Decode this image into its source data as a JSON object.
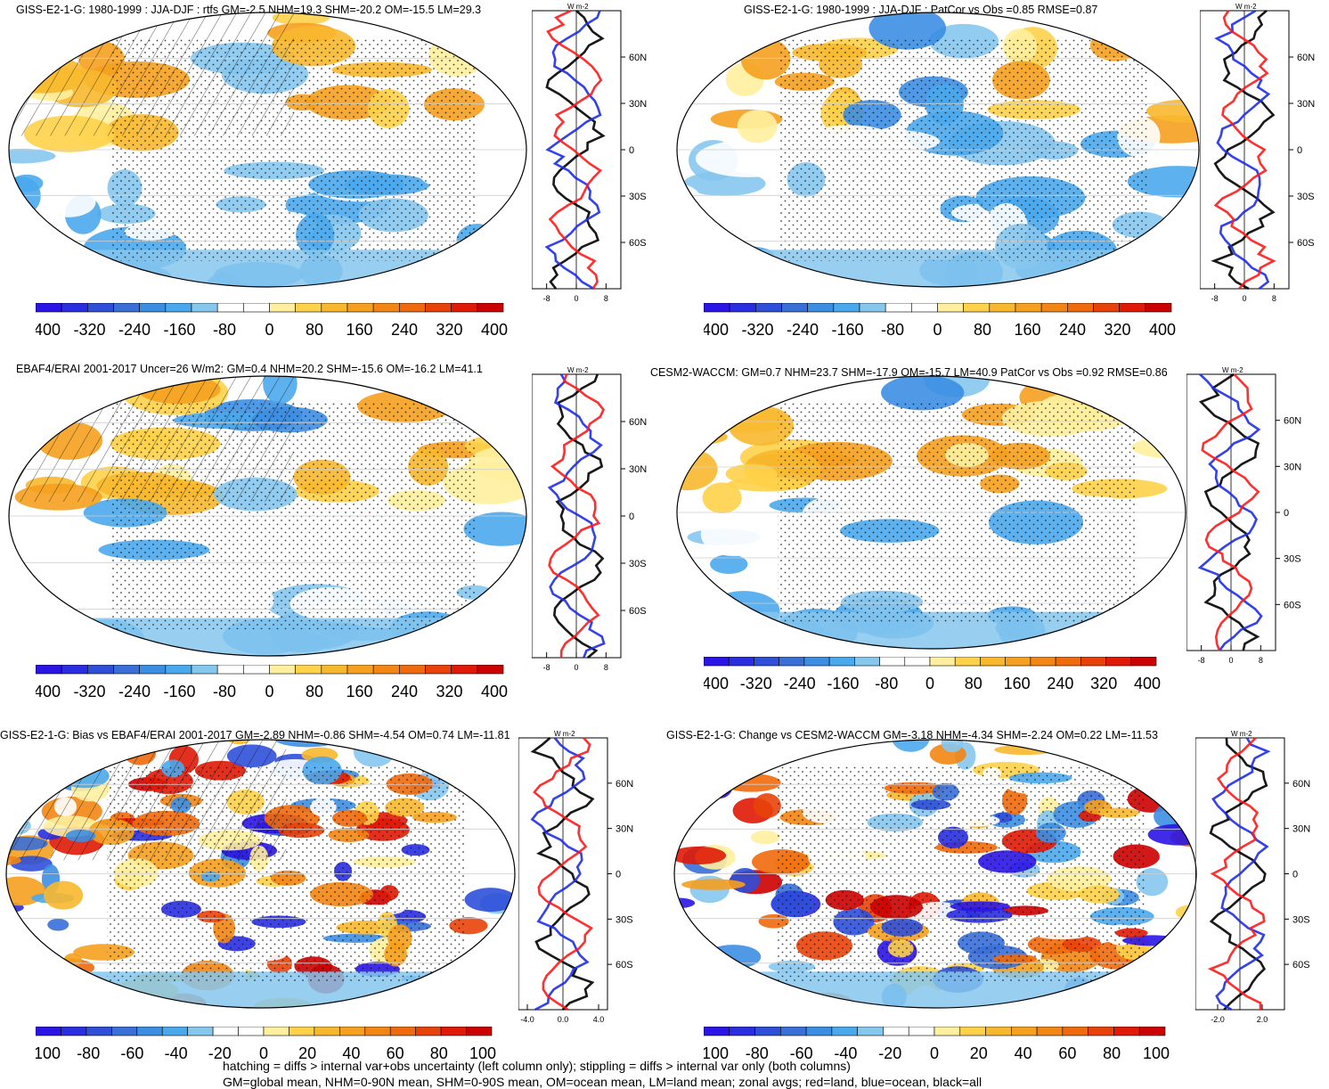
{
  "figure": {
    "footer_lines": [
      "hatching = diffs > internal var+obs uncertainty (left column only); stippling = diffs > internal var only (both columns)",
      "GM=global mean, NHM=0-90N mean, SHM=0-90S mean, OM=ocean mean, LM=land mean; zonal avgs; red=land, blue=ocean, black=all"
    ],
    "profile_unit": "W m-2",
    "colors": {
      "land": "#ff1a1a",
      "ocean": "#1e2ee8",
      "all": "#000000"
    }
  },
  "chart_data": [
    {
      "type": "heatmap",
      "title": "GISS-E2-1-G: 1980-1999 : JJA-DJF : rtfs GM=-2.5 NHM=19.3 SHM=-20.2 OM=-15.5 LM=29.3",
      "colorbar": {
        "ticks": [
          "-400",
          "-320",
          "-240",
          "-160",
          "-80",
          "0",
          "80",
          "160",
          "240",
          "320",
          "400"
        ]
      },
      "profile": {
        "xticks": [
          "-8",
          "0",
          "8"
        ],
        "xlim": [
          -12,
          12
        ],
        "lat_labels": [
          "60N",
          "30N",
          "0",
          "30S",
          "60S"
        ],
        "lats": [
          60,
          30,
          0,
          -30,
          -60
        ]
      },
      "hatching": true
    },
    {
      "type": "heatmap",
      "title": "GISS-E2-1-G: 1980-1999 : JJA-DJF : PatCor vs Obs =0.85 RMSE=0.87",
      "colorbar": {
        "ticks": [
          "-400",
          "-320",
          "-240",
          "-160",
          "-80",
          "0",
          "80",
          "160",
          "240",
          "320",
          "400"
        ]
      },
      "profile": {
        "xticks": [
          "-8",
          "0",
          "8"
        ],
        "xlim": [
          -12,
          12
        ],
        "lat_labels": [
          "60N",
          "30N",
          "0",
          "30S",
          "60S"
        ],
        "lats": [
          60,
          30,
          0,
          -30,
          -60
        ]
      },
      "hatching": false
    },
    {
      "type": "heatmap",
      "title": "EBAF4/ERAI 2001-2017 Uncer=26 W/m2: GM=0.4 NHM=20.2 SHM=-15.6 OM=-16.2 LM=41.1",
      "colorbar": {
        "ticks": [
          "-400",
          "-320",
          "-240",
          "-160",
          "-80",
          "0",
          "80",
          "160",
          "240",
          "320",
          "400"
        ]
      },
      "profile": {
        "xticks": [
          "-8",
          "0",
          "8"
        ],
        "xlim": [
          -12,
          12
        ],
        "lat_labels": [
          "60N",
          "30N",
          "0",
          "30S",
          "60S"
        ],
        "lats": [
          60,
          30,
          0,
          -30,
          -60
        ]
      },
      "hatching": true
    },
    {
      "type": "heatmap",
      "title": "CESM2-WACCM: GM=0.7 NHM=23.7 SHM=-17.9 OM=-15.7 LM=40.9 PatCor vs Obs =0.92 RMSE=0.86",
      "colorbar": {
        "ticks": [
          "-400",
          "-320",
          "-240",
          "-160",
          "-80",
          "0",
          "80",
          "160",
          "240",
          "320",
          "400"
        ]
      },
      "profile": {
        "xticks": [
          "-8",
          "0",
          "8"
        ],
        "xlim": [
          -12,
          12
        ],
        "lat_labels": [
          "60N",
          "30N",
          "0",
          "30S",
          "60S"
        ],
        "lats": [
          60,
          30,
          0,
          -30,
          -60
        ]
      },
      "hatching": false
    },
    {
      "type": "heatmap",
      "title": "GISS-E2-1-G: Bias vs EBAF4/ERAI 2001-2017 GM=-2.89 NHM=-0.86 SHM=-4.54 OM=0.74 LM=-11.81",
      "colorbar": {
        "ticks": [
          "-100",
          "-80",
          "-60",
          "-40",
          "-20",
          "0",
          "20",
          "40",
          "60",
          "80",
          "100"
        ]
      },
      "profile": {
        "xticks": [
          "-4.0",
          "0.0",
          "4.0"
        ],
        "xlim": [
          -5,
          5
        ],
        "lat_labels": [
          "60N",
          "30N",
          "0",
          "30S",
          "60S"
        ],
        "lats": [
          60,
          30,
          0,
          -30,
          -60
        ]
      },
      "hatching": true
    },
    {
      "type": "heatmap",
      "title": "GISS-E2-1-G: Change vs CESM2-WACCM GM=-3.18 NHM=-4.34 SHM=-2.24 OM=0.22 LM=-11.53",
      "colorbar": {
        "ticks": [
          "-100",
          "-80",
          "-60",
          "-40",
          "-20",
          "0",
          "20",
          "40",
          "60",
          "80",
          "100"
        ]
      },
      "profile": {
        "xticks": [
          "-2.0",
          "2.0"
        ],
        "xlim": [
          -4,
          4
        ],
        "lat_labels": [
          "60N",
          "30N",
          "0",
          "30S",
          "60S"
        ],
        "lats": [
          60,
          30,
          0,
          -30,
          -60
        ]
      },
      "hatching": false
    }
  ]
}
